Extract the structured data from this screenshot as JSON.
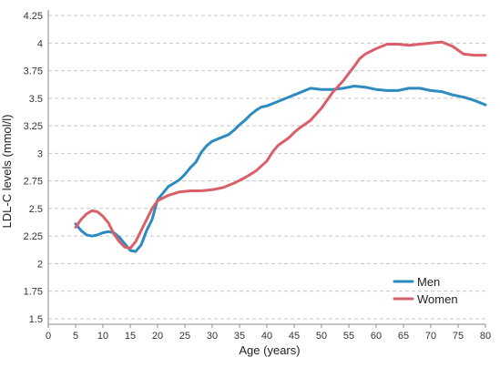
{
  "chart_data": {
    "type": "line",
    "title": "",
    "xlabel": "Age (years)",
    "ylabel": "LDL-C levels (mmol/l)",
    "xlim": [
      0,
      80
    ],
    "ylim": [
      1.45,
      4.3
    ],
    "x_ticks": [
      0,
      5,
      10,
      15,
      20,
      25,
      30,
      35,
      40,
      45,
      50,
      55,
      60,
      65,
      70,
      75,
      80
    ],
    "y_ticks": [
      1.5,
      1.75,
      2,
      2.25,
      2.5,
      2.75,
      3,
      3.25,
      3.5,
      3.75,
      4,
      4.25
    ],
    "grid": "horizontal dashed",
    "legend_position": "bottom-right",
    "series": [
      {
        "name": "Men",
        "color": "#2e8bc0",
        "points": [
          [
            5,
            2.36
          ],
          [
            6,
            2.3
          ],
          [
            7,
            2.26
          ],
          [
            8,
            2.25
          ],
          [
            9,
            2.26
          ],
          [
            10,
            2.28
          ],
          [
            11,
            2.29
          ],
          [
            12,
            2.28
          ],
          [
            13,
            2.24
          ],
          [
            14,
            2.18
          ],
          [
            15,
            2.12
          ],
          [
            16,
            2.11
          ],
          [
            17,
            2.17
          ],
          [
            18,
            2.3
          ],
          [
            19,
            2.4
          ],
          [
            20,
            2.58
          ],
          [
            21,
            2.64
          ],
          [
            22,
            2.7
          ],
          [
            23,
            2.73
          ],
          [
            24,
            2.76
          ],
          [
            25,
            2.81
          ],
          [
            26,
            2.87
          ],
          [
            27,
            2.92
          ],
          [
            28,
            3.01
          ],
          [
            29,
            3.07
          ],
          [
            30,
            3.11
          ],
          [
            31,
            3.13
          ],
          [
            32,
            3.15
          ],
          [
            33,
            3.17
          ],
          [
            34,
            3.21
          ],
          [
            35,
            3.26
          ],
          [
            36,
            3.3
          ],
          [
            37,
            3.35
          ],
          [
            38,
            3.39
          ],
          [
            39,
            3.42
          ],
          [
            40,
            3.43
          ],
          [
            42,
            3.47
          ],
          [
            44,
            3.51
          ],
          [
            46,
            3.55
          ],
          [
            48,
            3.59
          ],
          [
            50,
            3.58
          ],
          [
            52,
            3.58
          ],
          [
            54,
            3.59
          ],
          [
            56,
            3.61
          ],
          [
            58,
            3.6
          ],
          [
            60,
            3.58
          ],
          [
            62,
            3.57
          ],
          [
            64,
            3.57
          ],
          [
            66,
            3.59
          ],
          [
            68,
            3.59
          ],
          [
            70,
            3.57
          ],
          [
            72,
            3.56
          ],
          [
            74,
            3.53
          ],
          [
            76,
            3.51
          ],
          [
            78,
            3.48
          ],
          [
            80,
            3.44
          ]
        ]
      },
      {
        "name": "Women",
        "color": "#d9606a",
        "points": [
          [
            5,
            2.33
          ],
          [
            6,
            2.4
          ],
          [
            7,
            2.45
          ],
          [
            8,
            2.48
          ],
          [
            9,
            2.47
          ],
          [
            10,
            2.43
          ],
          [
            11,
            2.37
          ],
          [
            12,
            2.27
          ],
          [
            13,
            2.2
          ],
          [
            14,
            2.15
          ],
          [
            15,
            2.14
          ],
          [
            16,
            2.2
          ],
          [
            17,
            2.3
          ],
          [
            18,
            2.4
          ],
          [
            19,
            2.5
          ],
          [
            20,
            2.57
          ],
          [
            22,
            2.62
          ],
          [
            24,
            2.65
          ],
          [
            26,
            2.66
          ],
          [
            28,
            2.66
          ],
          [
            30,
            2.67
          ],
          [
            32,
            2.69
          ],
          [
            34,
            2.73
          ],
          [
            36,
            2.78
          ],
          [
            38,
            2.84
          ],
          [
            40,
            2.93
          ],
          [
            41,
            3.01
          ],
          [
            42,
            3.07
          ],
          [
            44,
            3.14
          ],
          [
            45,
            3.19
          ],
          [
            46,
            3.23
          ],
          [
            48,
            3.3
          ],
          [
            50,
            3.41
          ],
          [
            52,
            3.55
          ],
          [
            54,
            3.66
          ],
          [
            56,
            3.79
          ],
          [
            57,
            3.86
          ],
          [
            58,
            3.9
          ],
          [
            60,
            3.95
          ],
          [
            62,
            3.99
          ],
          [
            64,
            3.99
          ],
          [
            66,
            3.98
          ],
          [
            68,
            3.99
          ],
          [
            70,
            4.0
          ],
          [
            72,
            4.01
          ],
          [
            74,
            3.97
          ],
          [
            76,
            3.9
          ],
          [
            78,
            3.89
          ],
          [
            80,
            3.89
          ]
        ]
      }
    ]
  }
}
